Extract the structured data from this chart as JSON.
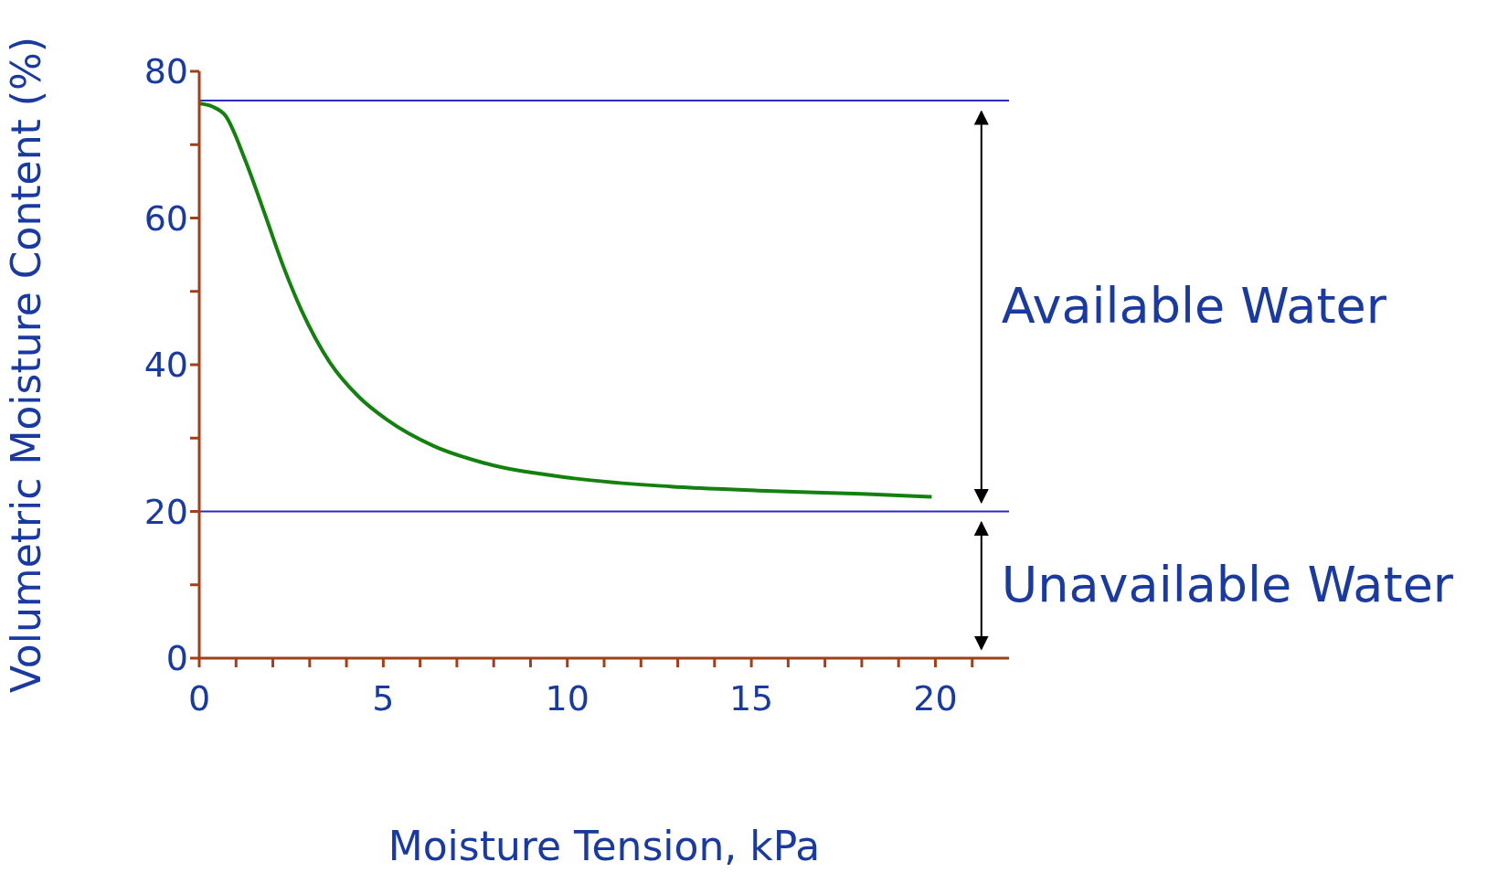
{
  "chart_data": {
    "type": "line",
    "xlabel": "Moisture Tension, kPa",
    "ylabel": "Volumetric Moisture Content (%)",
    "x": [
      0,
      0.35,
      0.72,
      1.24,
      1.75,
      2.27,
      2.78,
      3.55,
      4.32,
      5.1,
      6.38,
      7.67,
      10.2,
      12.8,
      15.4,
      18,
      19.9
    ],
    "series": [
      {
        "color": "#138010",
        "values": [
          75.6,
          75.2,
          73.9,
          68,
          61,
          53.6,
          47.4,
          40.3,
          35.7,
          32.5,
          28.9,
          26.7,
          24.5,
          23.4,
          22.8,
          22.4,
          22.0
        ]
      }
    ],
    "xlim": [
      0,
      22
    ],
    "xticks": [
      0,
      {
        "value": 1,
        "label": null
      },
      {
        "value": 2,
        "label": null
      },
      {
        "value": 3,
        "label": null
      },
      {
        "value": 4,
        "label": null
      },
      5,
      {
        "value": 6,
        "label": null
      },
      {
        "value": 7,
        "label": null
      },
      {
        "value": 8,
        "label": null
      },
      {
        "value": 9,
        "label": null
      },
      10,
      {
        "value": 11,
        "label": null
      },
      {
        "value": 12,
        "label": null
      },
      {
        "value": 13,
        "label": null
      },
      {
        "value": 14,
        "label": null
      },
      15,
      {
        "value": 16,
        "label": null
      },
      {
        "value": 17,
        "label": null
      },
      {
        "value": 18,
        "label": null
      },
      {
        "value": 19,
        "label": null
      },
      20,
      {
        "value": 21,
        "label": null
      }
    ],
    "ylim": [
      0,
      80
    ],
    "yticks": [
      0,
      {
        "value": 10,
        "label": null
      },
      20,
      {
        "value": 30,
        "label": null
      },
      40,
      {
        "value": 50,
        "label": null
      },
      60,
      {
        "value": 70,
        "label": null
      },
      80
    ],
    "ref_lines": [
      {
        "axis": "y",
        "value": 76,
        "label": null,
        "color": "#2a2ac0"
      },
      {
        "axis": "y",
        "value": 20,
        "label": null,
        "color": "#2a2ac0"
      }
    ],
    "annotations": [
      "Available Water",
      "Unavailable Water"
    ],
    "grid": false,
    "legend": false,
    "marker": "none",
    "line_style": "solid"
  }
}
